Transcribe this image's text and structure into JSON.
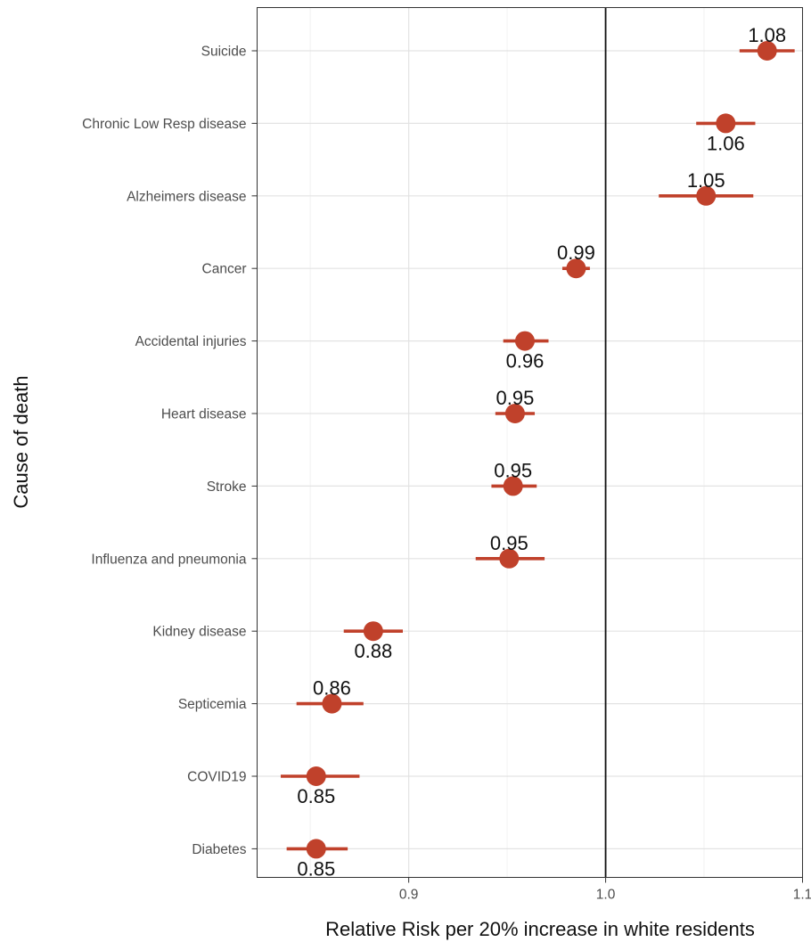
{
  "chart_data": {
    "type": "scatter",
    "subtype": "dot-and-whisker",
    "xlabel": "Relative Risk per 20% increase in white residents",
    "ylabel": "Cause of death",
    "xlim": [
      0.823,
      1.1
    ],
    "x_ticks": [
      {
        "value": 0.9,
        "label": "0.9"
      },
      {
        "value": 1.0,
        "label": "1.0"
      },
      {
        "value": 1.1,
        "label": "1.1"
      }
    ],
    "reference_line": 1.0,
    "grid": true,
    "point_color": "#c0412b",
    "categories": [
      {
        "name": "Suicide",
        "estimate": 1.082,
        "lower": 1.068,
        "upper": 1.096,
        "label": "1.08",
        "label_position": "above"
      },
      {
        "name": "Chronic Low Resp disease",
        "estimate": 1.061,
        "lower": 1.046,
        "upper": 1.076,
        "label": "1.06",
        "label_position": "below"
      },
      {
        "name": "Alzheimers disease",
        "estimate": 1.051,
        "lower": 1.027,
        "upper": 1.075,
        "label": "1.05",
        "label_position": "above"
      },
      {
        "name": "Cancer",
        "estimate": 0.985,
        "lower": 0.978,
        "upper": 0.992,
        "label": "0.99",
        "label_position": "above"
      },
      {
        "name": "Accidental injuries",
        "estimate": 0.959,
        "lower": 0.948,
        "upper": 0.971,
        "label": "0.96",
        "label_position": "below"
      },
      {
        "name": "Heart disease",
        "estimate": 0.954,
        "lower": 0.944,
        "upper": 0.964,
        "label": "0.95",
        "label_position": "above"
      },
      {
        "name": "Stroke",
        "estimate": 0.953,
        "lower": 0.942,
        "upper": 0.965,
        "label": "0.95",
        "label_position": "above"
      },
      {
        "name": "Influenza and pneumonia",
        "estimate": 0.951,
        "lower": 0.934,
        "upper": 0.969,
        "label": "0.95",
        "label_position": "above"
      },
      {
        "name": "Kidney disease",
        "estimate": 0.882,
        "lower": 0.867,
        "upper": 0.897,
        "label": "0.88",
        "label_position": "below"
      },
      {
        "name": "Septicemia",
        "estimate": 0.861,
        "lower": 0.843,
        "upper": 0.877,
        "label": "0.86",
        "label_position": "above"
      },
      {
        "name": "COVID19",
        "estimate": 0.853,
        "lower": 0.835,
        "upper": 0.875,
        "label": "0.85",
        "label_position": "below"
      },
      {
        "name": "Diabetes",
        "estimate": 0.853,
        "lower": 0.838,
        "upper": 0.869,
        "label": "0.85",
        "label_position": "below"
      }
    ]
  }
}
